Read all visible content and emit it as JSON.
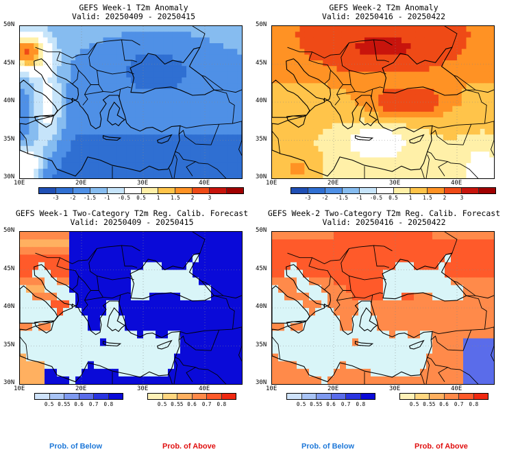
{
  "panels": [
    {
      "id": "p1",
      "title": "GEFS Week-1 T2m Anomaly",
      "valid": "Valid: 20250409 - 20250415",
      "kind": "anom1"
    },
    {
      "id": "p2",
      "title": "GEFS Week-2 T2m Anomaly",
      "valid": "Valid: 20250416 - 20250422",
      "kind": "anom2"
    },
    {
      "id": "p3",
      "title": "GEFS Week-1 Two-Category T2m Reg. Calib. Forecast",
      "valid": "Valid: 20250409 - 20250415",
      "kind": "prob1"
    },
    {
      "id": "p4",
      "title": "GEFS Week-2 Two-Category T2m Reg. Calib. Forecast",
      "valid": "Valid: 20250416 - 20250422",
      "kind": "prob2"
    }
  ],
  "lat_labels": [
    "50N",
    "45N",
    "40N",
    "35N",
    "30N"
  ],
  "lon_labels": [
    "10E",
    "20E",
    "30E",
    "40E"
  ],
  "anomaly_scale": {
    "ticks": [
      "-3",
      "-2",
      "-1.5",
      "-1",
      "-0.5",
      "0.5",
      "1",
      "1.5",
      "2",
      "3"
    ],
    "colors": [
      "#1f4fb4",
      "#2f6fd2",
      "#4f90e6",
      "#86bcf0",
      "#c6e4fa",
      "#ffffff",
      "#fff0a8",
      "#ffc44a",
      "#ff9224",
      "#ef4a16",
      "#c8140c",
      "#a00000"
    ]
  },
  "below_scale": {
    "ticks": [
      "0.5",
      "0.55",
      "0.6",
      "0.7",
      "0.8"
    ],
    "colors": [
      "#cfe3fb",
      "#a9c4f6",
      "#7f9af0",
      "#5a6cea",
      "#2a35e0",
      "#0a0ad8"
    ]
  },
  "above_scale": {
    "ticks": [
      "0.5",
      "0.55",
      "0.6",
      "0.7",
      "0.8"
    ],
    "colors": [
      "#fff2b8",
      "#ffd780",
      "#ffb060",
      "#ff8a4a",
      "#ff5a2a",
      "#f02810"
    ]
  },
  "legend": {
    "below": "Prob. of Below",
    "above": "Prob. of Above"
  },
  "legend_colors": {
    "below": "#1e78d8",
    "above": "#e01010"
  }
}
